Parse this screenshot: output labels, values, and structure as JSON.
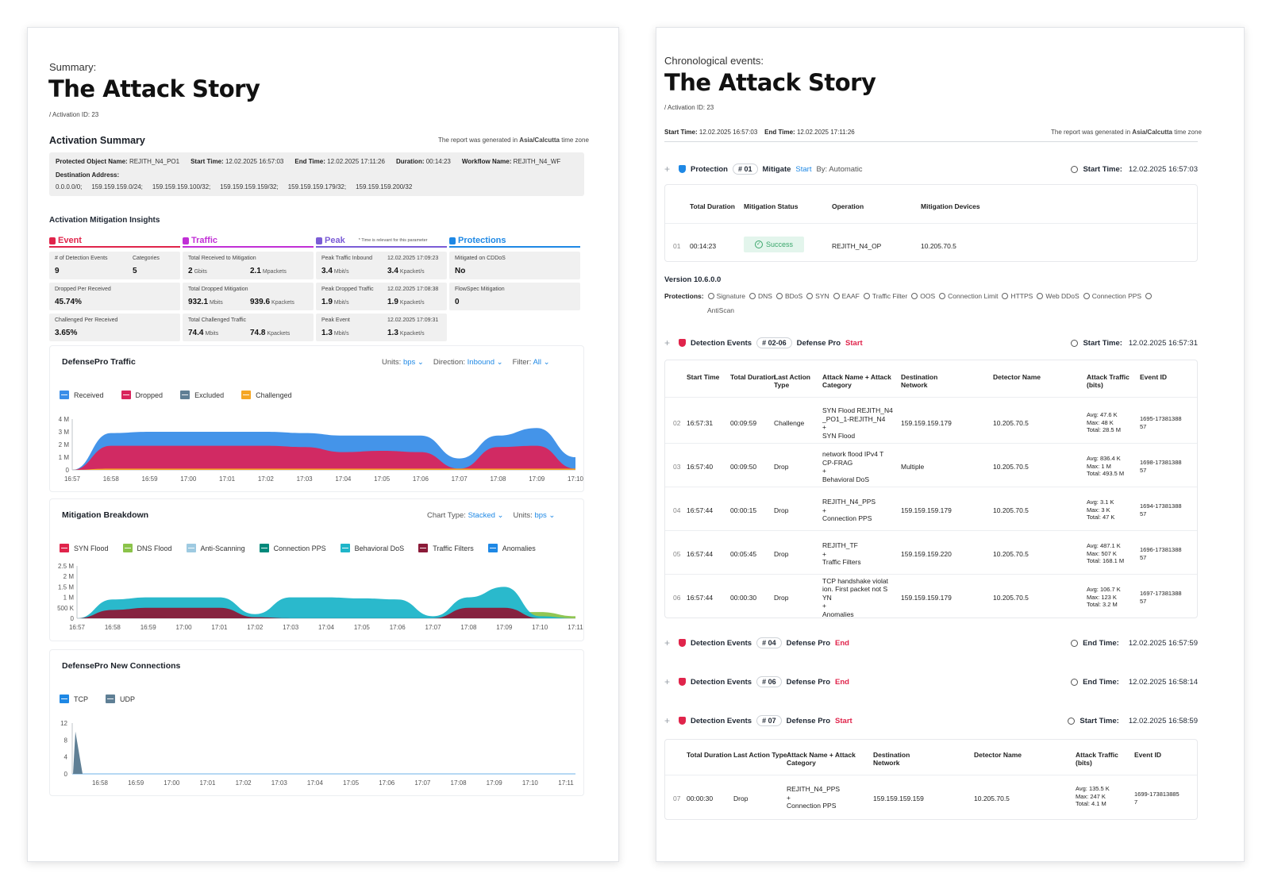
{
  "left": {
    "caption": "Summary:",
    "title": "The Attack Story",
    "activation_id": "/ Activation ID: 23",
    "activation_summary": {
      "heading": "Activation Summary",
      "tz_prefix": "The report was generated in",
      "tz_name": "Asia/Calcutta",
      "tz_suffix": "time zone",
      "fields": [
        {
          "label": "Protected Object Name:",
          "value": "REJITH_N4_PO1"
        },
        {
          "label": "Start Time:",
          "value": "12.02.2025 16:57:03"
        },
        {
          "label": "End Time:",
          "value": "12.02.2025 17:11:26"
        },
        {
          "label": "Duration:",
          "value": "00:14:23"
        },
        {
          "label": "Workflow Name:",
          "value": "REJITH_N4_WF"
        }
      ],
      "dest_label": "Destination Address:",
      "dest_values": [
        "0.0.0.0/0;",
        "159.159.159.0/24;",
        "159.159.159.100/32;",
        "159.159.159.159/32;",
        "159.159.159.179/32;",
        "159.159.159.200/32"
      ]
    },
    "insights": {
      "heading": "Activation Mitigation Insights",
      "columns": [
        {
          "title": "Event",
          "color": "#e0244b"
        },
        {
          "title": "Traffic",
          "color": "#c12fd6"
        },
        {
          "title": "Peak",
          "color": "#7b5cd6",
          "note": "* Time is relevant for this parameter"
        },
        {
          "title": "Protections",
          "color": "#1e88e5"
        }
      ],
      "event": [
        {
          "label1": "# of Detection Events",
          "val1": "9",
          "label2": "Categories",
          "val2": "5"
        },
        {
          "label1": "Dropped Per Received",
          "val1": "45.74%"
        },
        {
          "label1": "Challenged Per Received",
          "val1": "3.65%"
        }
      ],
      "traffic": [
        {
          "label": "Total Received to Mitigation",
          "v1": "2",
          "u1": "Gbits",
          "v2": "2.1",
          "u2": "Mpackets"
        },
        {
          "label": "Total Dropped Mitigation",
          "v1": "932.1",
          "u1": "Mbits",
          "v2": "939.6",
          "u2": "Kpackets"
        },
        {
          "label": "Total Challenged Traffic",
          "v1": "74.4",
          "u1": "Mbits",
          "v2": "74.8",
          "u2": "Kpackets"
        }
      ],
      "peak": [
        {
          "label": "Peak Traffic Inbound",
          "time": "12.02.2025 17:09:23",
          "v1": "3.4",
          "u1": "Mbit/s",
          "v2": "3.4",
          "u2": "Kpacket/s"
        },
        {
          "label": "Peak Dropped Traffic",
          "time": "12.02.2025 17:08:38",
          "v1": "1.9",
          "u1": "Mbit/s",
          "v2": "1.9",
          "u2": "Kpacket/s"
        },
        {
          "label": "Peak Event",
          "time": "12.02.2025 17:09:31",
          "v1": "1.3",
          "u1": "Mbit/s",
          "v2": "1.3",
          "u2": "Kpacket/s"
        }
      ],
      "protections": [
        {
          "label": "Mitigated on CDDoS",
          "val": "No"
        },
        {
          "label": "FlowSpec Mitigation",
          "val": "0"
        }
      ]
    },
    "traffic_card": {
      "title": "DefensePro Traffic",
      "units_label": "Units:",
      "units_value": "bps",
      "direction_label": "Direction:",
      "direction_value": "Inbound",
      "filter_label": "Filter:",
      "filter_value": "All"
    },
    "breakdown_card": {
      "title": "Mitigation Breakdown",
      "chart_type_label": "Chart Type:",
      "chart_type_value": "Stacked",
      "units_label": "Units:",
      "units_value": "bps"
    },
    "connections_card": {
      "title": "DefensePro New Connections"
    }
  },
  "chart_data": [
    {
      "type": "area",
      "title": "DefensePro Traffic",
      "x": [
        "16:57",
        "16:58",
        "16:59",
        "17:00",
        "17:01",
        "17:02",
        "17:03",
        "17:04",
        "17:05",
        "17:06",
        "17:07",
        "17:08",
        "17:09",
        "17:10"
      ],
      "y_ticks": [
        "0",
        "1 M",
        "2 M",
        "3 M",
        "4 M"
      ],
      "ylim": [
        0,
        4
      ],
      "unit": "M",
      "series": [
        {
          "name": "Received",
          "color": "#3a8ee8",
          "values": [
            0,
            2.9,
            3.0,
            3.0,
            3.0,
            3.0,
            2.9,
            2.7,
            2.7,
            2.7,
            0.9,
            2.7,
            3.3,
            1.0
          ]
        },
        {
          "name": "Dropped",
          "color": "#d9245c",
          "values": [
            0,
            1.9,
            1.9,
            1.9,
            1.9,
            1.9,
            1.8,
            1.4,
            1.5,
            1.4,
            0.1,
            1.8,
            1.9,
            0.1
          ]
        },
        {
          "name": "Excluded",
          "color": "#5f7f95",
          "values": [
            0,
            0,
            0,
            0,
            0,
            0,
            0,
            0,
            0,
            0,
            0,
            0,
            0,
            0
          ]
        },
        {
          "name": "Challenged",
          "color": "#f5a623",
          "values": [
            0,
            0.1,
            0.1,
            0.1,
            0.1,
            0.1,
            0.1,
            0.1,
            0.1,
            0.1,
            0.1,
            0.1,
            0.1,
            0.1
          ]
        }
      ]
    },
    {
      "type": "area",
      "title": "Mitigation Breakdown",
      "stacked": true,
      "x": [
        "16:57",
        "16:58",
        "16:59",
        "17:00",
        "17:01",
        "17:02",
        "17:03",
        "17:04",
        "17:05",
        "17:06",
        "17:07",
        "17:08",
        "17:09",
        "17:10",
        "17:11"
      ],
      "y_ticks": [
        "0",
        "500 K",
        "1 M",
        "1.5 M",
        "2 M",
        "2.5 M"
      ],
      "ylim": [
        0,
        2.5
      ],
      "unit": "M",
      "series": [
        {
          "name": "SYN Flood",
          "color": "#e0244b",
          "values": [
            0,
            0.05,
            0.05,
            0.05,
            0.05,
            0.05,
            0.05,
            0.05,
            0.05,
            0.05,
            0.05,
            0.05,
            0.05,
            0.05,
            0
          ]
        },
        {
          "name": "DNS Flood",
          "color": "#8bc34a",
          "values": [
            0,
            0,
            0.05,
            0,
            0,
            0,
            0,
            0,
            0,
            0,
            0,
            0.3,
            0.3,
            0.3,
            0.1
          ]
        },
        {
          "name": "Anti-Scanning",
          "color": "#9ecae1",
          "values": [
            0,
            0,
            0,
            0,
            0,
            0,
            0,
            0,
            0,
            0,
            0,
            0,
            0,
            0,
            0
          ]
        },
        {
          "name": "Connection PPS",
          "color": "#00897b",
          "values": [
            0,
            0,
            0.2,
            0,
            0,
            0,
            0,
            0,
            0,
            0,
            0,
            0,
            0,
            0,
            0
          ]
        },
        {
          "name": "Behavioral DoS",
          "color": "#1fb5c9",
          "values": [
            0,
            0.9,
            1.0,
            1.0,
            1.0,
            0.2,
            1.0,
            1.0,
            0.95,
            0.9,
            0.1,
            1.0,
            1.5,
            0.1,
            0
          ]
        },
        {
          "name": "Traffic Filters",
          "color": "#8b1a38",
          "values": [
            0,
            0.4,
            0.5,
            0.5,
            0.5,
            0.05,
            0,
            0,
            0,
            0,
            0,
            0.5,
            0.5,
            0,
            0
          ]
        },
        {
          "name": "Anomalies",
          "color": "#1e88e5",
          "values": [
            0,
            0,
            0,
            0,
            0,
            0,
            0,
            0,
            0,
            0,
            0,
            0,
            0,
            0,
            0
          ]
        }
      ]
    },
    {
      "type": "area",
      "title": "DefensePro New Connections",
      "x": [
        "16:58",
        "16:59",
        "17:00",
        "17:01",
        "17:02",
        "17:03",
        "17:04",
        "17:05",
        "17:06",
        "17:07",
        "17:08",
        "17:09",
        "17:10",
        "17:11"
      ],
      "y_ticks": [
        "0",
        "4",
        "8",
        "12"
      ],
      "ylim": [
        0,
        12
      ],
      "series": [
        {
          "name": "TCP",
          "color": "#1e88e5",
          "values": [
            0,
            0,
            0,
            0,
            0,
            0,
            0,
            0,
            0,
            0,
            0,
            0,
            0,
            0
          ]
        },
        {
          "name": "UDP",
          "color": "#5f7f95",
          "values": [
            0,
            0,
            0,
            0,
            0,
            0,
            0,
            0,
            0,
            0,
            0,
            0,
            0,
            0
          ]
        }
      ],
      "spike": {
        "x": "16:57",
        "value": 10
      }
    }
  ],
  "right": {
    "caption": "Chronological events:",
    "title": "The Attack Story",
    "activation_id": "/ Activation ID: 23",
    "start_label": "Start Time:",
    "start_value": "12.02.2025 16:57:03",
    "end_label": "End Time:",
    "end_value": "12.02.2025 17:11:26",
    "tz_prefix": "The report was generated in",
    "tz_name": "Asia/Calcutta",
    "tz_suffix": "time zone",
    "protection_row": {
      "label": "Protection",
      "id": "# 01",
      "action": "Mitigate",
      "status": "Start",
      "by": "By: Automatic",
      "time_label": "Start Time:",
      "time_value": "12.02.2025 16:57:03"
    },
    "protection_table": {
      "headers": [
        "Total Duration",
        "Mitigation Status",
        "Operation",
        "Mitigation Devices"
      ],
      "row": {
        "num": "01",
        "duration": "00:14:23",
        "status": "Success",
        "operation": "REJITH_N4_OP",
        "devices": "10.205.70.5"
      }
    },
    "version": "Version 10.6.0.0",
    "protections_label": "Protections:",
    "protections_list": [
      "Signature",
      "DNS",
      "BDoS",
      "SYN",
      "EAAF",
      "Traffic Filter",
      "OOS",
      "Connection Limit",
      "HTTPS",
      "Web DDoS",
      "Connection PPS"
    ],
    "protections_extra": "AntiScan",
    "detection_row": {
      "label": "Detection Events",
      "id": "# 02-06",
      "device": "Defense Pro",
      "status": "Start",
      "time_label": "Start Time:",
      "time_value": "12.02.2025 16:57:31"
    },
    "detection_table": {
      "headers": [
        "Start Time",
        "Total Duration",
        "Last Action Type",
        "Attack Name + Attack Category",
        "Destination Network",
        "Detector Name",
        "Attack Traffic (bits)",
        "Event ID"
      ],
      "rows": [
        {
          "num": "02",
          "start": "16:57:31",
          "duration": "00:09:59",
          "action": "Challenge",
          "attack": [
            "SYN Flood REJITH_N4",
            "_PO1_1-REJITH_N4",
            "+",
            "SYN Flood"
          ],
          "dest": "159.159.159.179",
          "detector": "10.205.70.5",
          "traffic": [
            "Avg: 47.6 K",
            "Max: 48 K",
            "Total: 28.5 M"
          ],
          "event_id": [
            "1695-17381388",
            "57"
          ]
        },
        {
          "num": "03",
          "start": "16:57:40",
          "duration": "00:09:50",
          "action": "Drop",
          "attack": [
            "network flood IPv4 T",
            "CP-FRAG",
            "+",
            "Behavioral DoS"
          ],
          "dest": "Multiple",
          "detector": "10.205.70.5",
          "traffic": [
            "Avg: 836.4 K",
            "Max: 1 M",
            "Total: 493.5 M"
          ],
          "event_id": [
            "1698-17381388",
            "57"
          ]
        },
        {
          "num": "04",
          "start": "16:57:44",
          "duration": "00:00:15",
          "action": "Drop",
          "attack": [
            "REJITH_N4_PPS",
            "+",
            "Connection PPS"
          ],
          "dest": "159.159.159.179",
          "detector": "10.205.70.5",
          "traffic": [
            "Avg: 3.1 K",
            "Max: 3 K",
            "Total: 47 K"
          ],
          "event_id": [
            "1694-17381388",
            "57"
          ]
        },
        {
          "num": "05",
          "start": "16:57:44",
          "duration": "00:05:45",
          "action": "Drop",
          "attack": [
            "REJITH_TF",
            "+",
            "Traffic Filters"
          ],
          "dest": "159.159.159.220",
          "detector": "10.205.70.5",
          "traffic": [
            "Avg: 487.1 K",
            "Max: 507 K",
            "Total: 168.1 M"
          ],
          "event_id": [
            "1696-17381388",
            "57"
          ]
        },
        {
          "num": "06",
          "start": "16:57:44",
          "duration": "00:00:30",
          "action": "Drop",
          "attack": [
            "TCP handshake violat",
            "ion. First packet not S",
            "YN",
            "+",
            "Anomalies"
          ],
          "dest": "159.159.159.179",
          "detector": "10.205.70.5",
          "traffic": [
            "Avg: 106.7 K",
            "Max: 123 K",
            "Total: 3.2 M"
          ],
          "event_id": [
            "1697-17381388",
            "57"
          ]
        }
      ]
    },
    "end_rows": [
      {
        "label": "Detection Events",
        "id": "# 04",
        "device": "Defense Pro",
        "status": "End",
        "time_label": "End Time:",
        "time_value": "12.02.2025 16:57:59"
      },
      {
        "label": "Detection Events",
        "id": "# 06",
        "device": "Defense Pro",
        "status": "End",
        "time_label": "End Time:",
        "time_value": "12.02.2025 16:58:14"
      },
      {
        "label": "Detection Events",
        "id": "# 07",
        "device": "Defense Pro",
        "status": "Start",
        "time_label": "Start Time:",
        "time_value": "12.02.2025 16:58:59"
      }
    ],
    "last_table": {
      "headers": [
        "Total Duration",
        "Last Action Type",
        "Attack Name + Attack Category",
        "Destination Network",
        "Detector Name",
        "Attack Traffic (bits)",
        "Event ID"
      ],
      "row": {
        "num": "07",
        "duration": "00:00:30",
        "action": "Drop",
        "attack": [
          "REJITH_N4_PPS",
          "+",
          "Connection PPS"
        ],
        "dest": "159.159.159.159",
        "detector": "10.205.70.5",
        "traffic": [
          "Avg: 135.5 K",
          "Max: 247 K",
          "Total: 4.1 M"
        ],
        "event_id": [
          "1699-173813885",
          "7"
        ]
      }
    }
  }
}
